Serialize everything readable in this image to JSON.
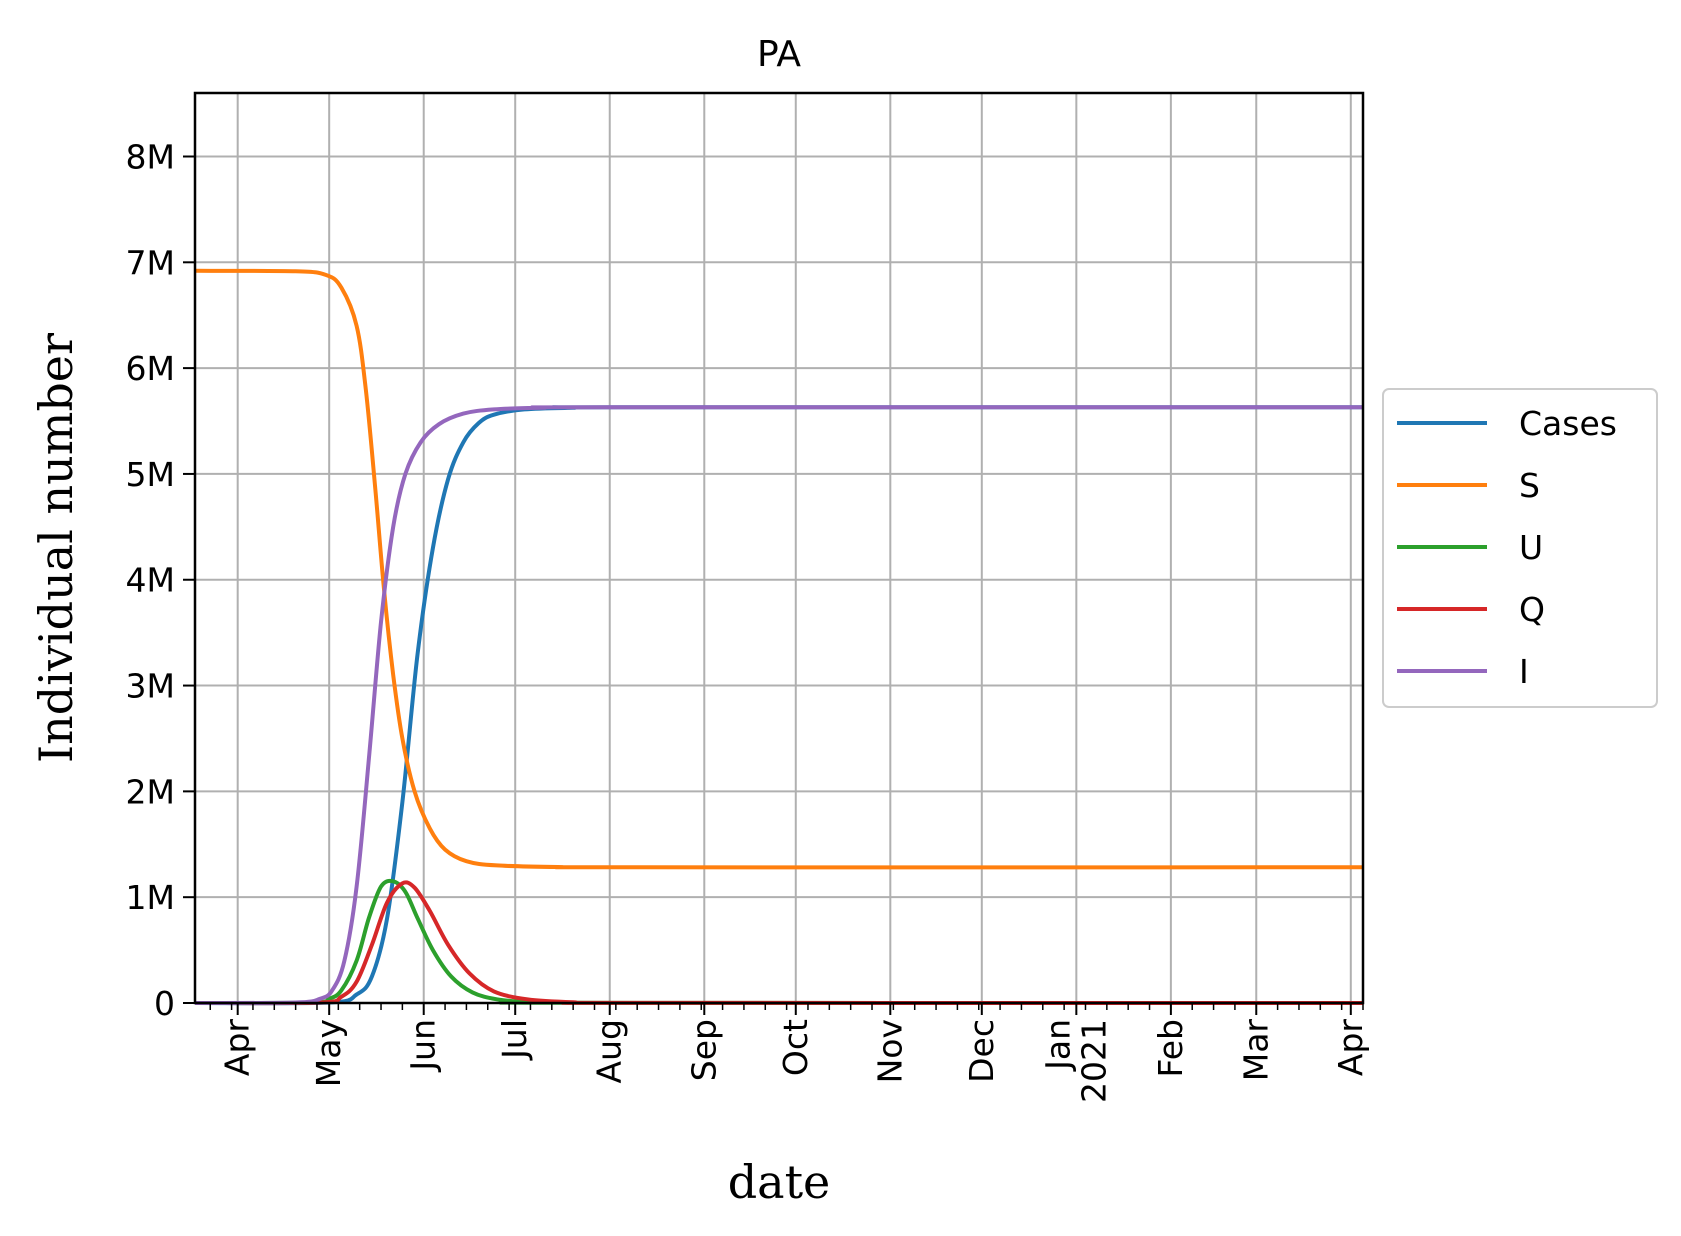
{
  "chart_data": {
    "type": "line",
    "title": "PA",
    "xlabel": "date",
    "ylabel": "Individual number",
    "x_axis": {
      "type": "date",
      "range": [
        "2020-03-18",
        "2021-04-05"
      ],
      "ticks": [
        {
          "date": "2020-04-01",
          "label": "Apr"
        },
        {
          "date": "2020-05-01",
          "label": "May"
        },
        {
          "date": "2020-06-01",
          "label": "Jun"
        },
        {
          "date": "2020-07-01",
          "label": "Jul"
        },
        {
          "date": "2020-08-01",
          "label": "Aug"
        },
        {
          "date": "2020-09-01",
          "label": "Sep"
        },
        {
          "date": "2020-10-01",
          "label": "Oct"
        },
        {
          "date": "2020-11-01",
          "label": "Nov"
        },
        {
          "date": "2020-12-01",
          "label": "Dec"
        },
        {
          "date": "2021-01-01",
          "label": "Jan\n2021"
        },
        {
          "date": "2021-02-01",
          "label": "Feb"
        },
        {
          "date": "2021-03-01",
          "label": "Mar"
        },
        {
          "date": "2021-04-01",
          "label": "Apr"
        }
      ]
    },
    "y_axis": {
      "range": [
        0,
        8600000
      ],
      "ticks": [
        {
          "value": 0,
          "label": "0"
        },
        {
          "value": 1000000,
          "label": "1M"
        },
        {
          "value": 2000000,
          "label": "2M"
        },
        {
          "value": 3000000,
          "label": "3M"
        },
        {
          "value": 4000000,
          "label": "4M"
        },
        {
          "value": 5000000,
          "label": "5M"
        },
        {
          "value": 6000000,
          "label": "6M"
        },
        {
          "value": 7000000,
          "label": "7M"
        },
        {
          "value": 8000000,
          "label": "8M"
        }
      ]
    },
    "grid": true,
    "legend_position": "right, outside plot",
    "series": [
      {
        "name": "Cases",
        "color": "#1f77b4",
        "points": [
          [
            "2020-03-18",
            0
          ],
          [
            "2020-05-01",
            5000
          ],
          [
            "2020-05-10",
            80000
          ],
          [
            "2020-05-15",
            250000
          ],
          [
            "2020-05-20",
            800000
          ],
          [
            "2020-05-25",
            1900000
          ],
          [
            "2020-05-30",
            3300000
          ],
          [
            "2020-06-04",
            4300000
          ],
          [
            "2020-06-09",
            4950000
          ],
          [
            "2020-06-14",
            5300000
          ],
          [
            "2020-06-19",
            5480000
          ],
          [
            "2020-06-24",
            5560000
          ],
          [
            "2020-07-04",
            5610000
          ],
          [
            "2020-07-20",
            5625000
          ],
          [
            "2020-08-05",
            5630000
          ],
          [
            "2021-04-05",
            5630000
          ]
        ]
      },
      {
        "name": "S",
        "color": "#ff7f0e",
        "points": [
          [
            "2020-03-18",
            6920000
          ],
          [
            "2020-04-20",
            6915000
          ],
          [
            "2020-04-30",
            6880000
          ],
          [
            "2020-05-05",
            6760000
          ],
          [
            "2020-05-10",
            6400000
          ],
          [
            "2020-05-13",
            5800000
          ],
          [
            "2020-05-16",
            4900000
          ],
          [
            "2020-05-19",
            3900000
          ],
          [
            "2020-05-22",
            3100000
          ],
          [
            "2020-05-25",
            2500000
          ],
          [
            "2020-05-29",
            2000000
          ],
          [
            "2020-06-03",
            1650000
          ],
          [
            "2020-06-08",
            1450000
          ],
          [
            "2020-06-15",
            1340000
          ],
          [
            "2020-06-25",
            1300000
          ],
          [
            "2020-07-15",
            1285000
          ],
          [
            "2020-08-10",
            1282000
          ],
          [
            "2021-04-05",
            1282000
          ]
        ]
      },
      {
        "name": "U",
        "color": "#2ca02c",
        "points": [
          [
            "2020-03-18",
            0
          ],
          [
            "2020-04-25",
            5000
          ],
          [
            "2020-05-01",
            40000
          ],
          [
            "2020-05-05",
            120000
          ],
          [
            "2020-05-10",
            400000
          ],
          [
            "2020-05-14",
            800000
          ],
          [
            "2020-05-18",
            1100000
          ],
          [
            "2020-05-22",
            1150000
          ],
          [
            "2020-05-26",
            1050000
          ],
          [
            "2020-05-30",
            800000
          ],
          [
            "2020-06-04",
            500000
          ],
          [
            "2020-06-10",
            250000
          ],
          [
            "2020-06-17",
            100000
          ],
          [
            "2020-06-25",
            35000
          ],
          [
            "2020-07-05",
            10000
          ],
          [
            "2020-07-20",
            2000
          ],
          [
            "2021-04-05",
            0
          ]
        ]
      },
      {
        "name": "Q",
        "color": "#d62728",
        "points": [
          [
            "2020-03-18",
            0
          ],
          [
            "2020-04-28",
            5000
          ],
          [
            "2020-05-05",
            60000
          ],
          [
            "2020-05-10",
            200000
          ],
          [
            "2020-05-15",
            550000
          ],
          [
            "2020-05-20",
            950000
          ],
          [
            "2020-05-25",
            1130000
          ],
          [
            "2020-05-29",
            1090000
          ],
          [
            "2020-06-03",
            870000
          ],
          [
            "2020-06-09",
            550000
          ],
          [
            "2020-06-16",
            280000
          ],
          [
            "2020-06-24",
            110000
          ],
          [
            "2020-07-05",
            35000
          ],
          [
            "2020-07-20",
            8000
          ],
          [
            "2020-08-10",
            1000
          ],
          [
            "2021-04-05",
            0
          ]
        ]
      },
      {
        "name": "I",
        "color": "#9467bd",
        "points": [
          [
            "2020-03-18",
            0
          ],
          [
            "2020-04-20",
            5000
          ],
          [
            "2020-04-28",
            40000
          ],
          [
            "2020-05-02",
            120000
          ],
          [
            "2020-05-06",
            400000
          ],
          [
            "2020-05-10",
            1100000
          ],
          [
            "2020-05-14",
            2300000
          ],
          [
            "2020-05-18",
            3600000
          ],
          [
            "2020-05-22",
            4500000
          ],
          [
            "2020-05-26",
            5000000
          ],
          [
            "2020-05-31",
            5300000
          ],
          [
            "2020-06-06",
            5470000
          ],
          [
            "2020-06-14",
            5570000
          ],
          [
            "2020-06-24",
            5610000
          ],
          [
            "2020-07-10",
            5625000
          ],
          [
            "2020-08-01",
            5630000
          ],
          [
            "2021-04-05",
            5630000
          ]
        ]
      }
    ]
  }
}
